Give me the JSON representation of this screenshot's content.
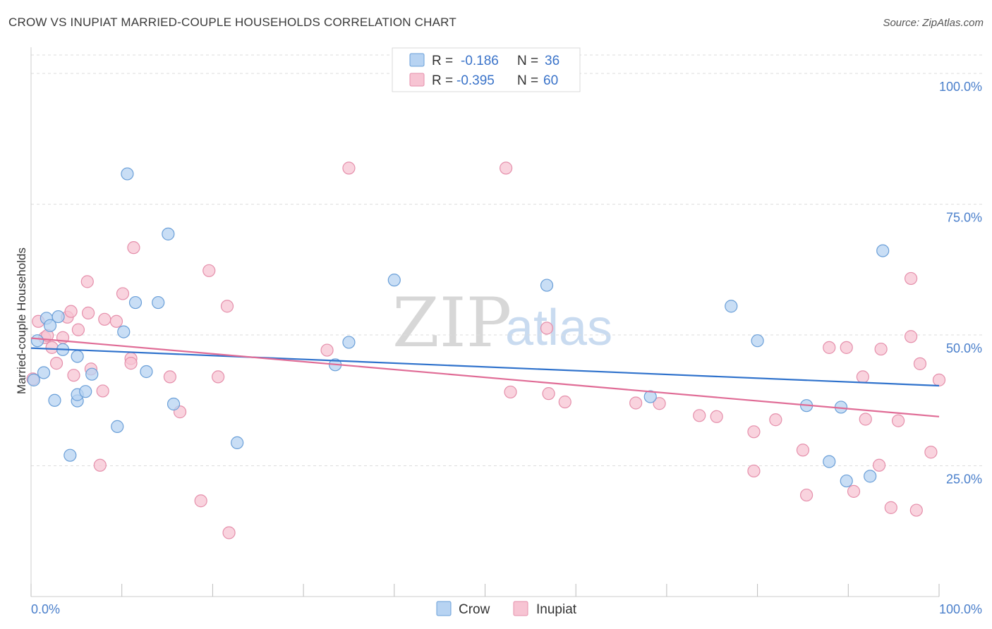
{
  "title": "CROW VS INUPIAT MARRIED-COUPLE HOUSEHOLDS CORRELATION CHART",
  "source": "Source: ZipAtlas.com",
  "watermark": {
    "zip": "ZIP",
    "atlas": "atlas"
  },
  "colors": {
    "crow_fill": "#b7d3f2",
    "crow_stroke": "#6a9fd8",
    "crow_line": "#2f72cc",
    "inupiat_fill": "#f7c4d3",
    "inupiat_stroke": "#e58fab",
    "inupiat_line": "#e06c96",
    "grid": "#dddddd",
    "tick_label": "#4a7fcb"
  },
  "legend": {
    "rows": [
      {
        "r_label": "R =",
        "r_value": "-0.186",
        "n_label": "N =",
        "n_value": "36"
      },
      {
        "r_label": "R =",
        "r_value": "-0.395",
        "n_label": "N =",
        "n_value": "60"
      }
    ]
  },
  "bottom_legend": [
    "Crow",
    "Inupiat"
  ],
  "chart_data": {
    "type": "scatter",
    "title": "CROW VS INUPIAT MARRIED-COUPLE HOUSEHOLDS CORRELATION CHART",
    "xlabel": "",
    "ylabel": "Married-couple Households",
    "xlim": [
      0,
      100
    ],
    "ylim": [
      0,
      105
    ],
    "x_tick_labels": [
      "0.0%",
      "100.0%"
    ],
    "y_ticks": [
      25,
      50,
      75,
      100
    ],
    "y_tick_labels": [
      "25.0%",
      "50.0%",
      "75.0%",
      "100.0%"
    ],
    "series": [
      {
        "name": "Crow",
        "r": -0.186,
        "n": 36,
        "trend": {
          "x": [
            0,
            100
          ],
          "y": [
            47.5,
            40.3
          ]
        },
        "points": [
          [
            0.3,
            41.4
          ],
          [
            0.7,
            48.9
          ],
          [
            1.4,
            42.8
          ],
          [
            1.7,
            53.2
          ],
          [
            2.1,
            51.8
          ],
          [
            2.6,
            37.5
          ],
          [
            3.0,
            53.5
          ],
          [
            3.5,
            47.2
          ],
          [
            4.3,
            27.0
          ],
          [
            5.1,
            45.9
          ],
          [
            5.1,
            37.4
          ],
          [
            5.1,
            38.6
          ],
          [
            6.0,
            39.2
          ],
          [
            6.7,
            42.5
          ],
          [
            9.5,
            32.5
          ],
          [
            10.2,
            50.6
          ],
          [
            10.6,
            80.8
          ],
          [
            11.5,
            56.2
          ],
          [
            12.7,
            43.0
          ],
          [
            14.0,
            56.2
          ],
          [
            15.1,
            69.3
          ],
          [
            15.7,
            36.8
          ],
          [
            22.7,
            29.4
          ],
          [
            33.5,
            44.3
          ],
          [
            35.0,
            48.6
          ],
          [
            40.0,
            60.5
          ],
          [
            56.8,
            59.5
          ],
          [
            68.2,
            38.2
          ],
          [
            77.1,
            55.5
          ],
          [
            80.0,
            48.9
          ],
          [
            85.4,
            36.5
          ],
          [
            87.9,
            25.8
          ],
          [
            89.2,
            36.2
          ],
          [
            89.8,
            22.1
          ],
          [
            92.4,
            23.0
          ],
          [
            93.8,
            66.1
          ]
        ]
      },
      {
        "name": "Inupiat",
        "r": -0.395,
        "n": 60,
        "trend": {
          "x": [
            0,
            100
          ],
          "y": [
            49.4,
            34.4
          ]
        },
        "points": [
          [
            0.2,
            41.6
          ],
          [
            0.8,
            52.6
          ],
          [
            1.5,
            49.5
          ],
          [
            1.8,
            49.9
          ],
          [
            2.3,
            47.6
          ],
          [
            2.8,
            44.6
          ],
          [
            3.5,
            49.5
          ],
          [
            4.0,
            53.4
          ],
          [
            4.4,
            54.5
          ],
          [
            4.7,
            42.3
          ],
          [
            5.2,
            51.0
          ],
          [
            6.2,
            60.2
          ],
          [
            6.3,
            54.2
          ],
          [
            6.6,
            43.5
          ],
          [
            7.6,
            25.1
          ],
          [
            7.9,
            39.3
          ],
          [
            8.1,
            53.0
          ],
          [
            9.4,
            52.6
          ],
          [
            10.1,
            57.9
          ],
          [
            11.0,
            45.5
          ],
          [
            11.3,
            66.7
          ],
          [
            11.0,
            44.6
          ],
          [
            15.3,
            42.0
          ],
          [
            16.4,
            35.3
          ],
          [
            18.7,
            18.3
          ],
          [
            19.6,
            62.3
          ],
          [
            20.6,
            42.0
          ],
          [
            21.6,
            55.5
          ],
          [
            21.8,
            12.2
          ],
          [
            32.6,
            47.1
          ],
          [
            35.0,
            81.9
          ],
          [
            52.3,
            81.9
          ],
          [
            52.8,
            39.1
          ],
          [
            56.8,
            51.3
          ],
          [
            57.0,
            38.8
          ],
          [
            58.8,
            37.2
          ],
          [
            66.6,
            37.0
          ],
          [
            69.2,
            36.9
          ],
          [
            73.6,
            34.6
          ],
          [
            75.5,
            34.4
          ],
          [
            79.6,
            31.5
          ],
          [
            79.6,
            24.0
          ],
          [
            82.0,
            33.8
          ],
          [
            85.0,
            28.0
          ],
          [
            85.4,
            19.4
          ],
          [
            87.9,
            47.6
          ],
          [
            89.8,
            47.6
          ],
          [
            90.6,
            20.1
          ],
          [
            91.6,
            42.0
          ],
          [
            91.9,
            33.9
          ],
          [
            93.4,
            25.1
          ],
          [
            93.6,
            47.3
          ],
          [
            94.7,
            17.0
          ],
          [
            95.5,
            33.6
          ],
          [
            96.9,
            60.8
          ],
          [
            96.9,
            49.7
          ],
          [
            97.5,
            16.5
          ],
          [
            97.9,
            44.5
          ],
          [
            99.1,
            27.6
          ],
          [
            100.0,
            41.4
          ]
        ]
      }
    ]
  }
}
